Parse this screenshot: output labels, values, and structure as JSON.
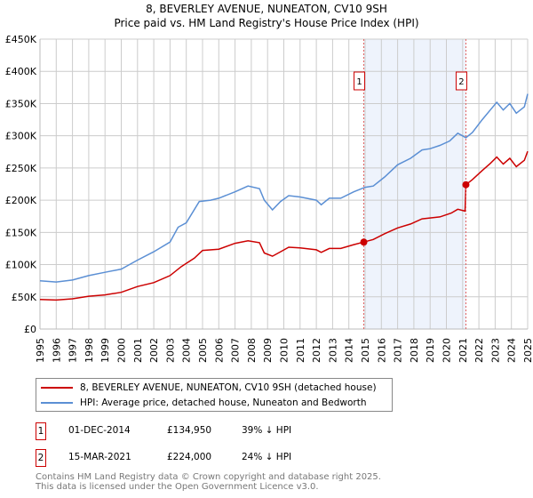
{
  "chart_data": {
    "type": "line",
    "title": "8, BEVERLEY AVENUE, NUNEATON, CV10 9SH",
    "subtitle": "Price paid vs. HM Land Registry's House Price Index (HPI)",
    "xlim": [
      1995,
      2025
    ],
    "ylim": [
      0,
      450000
    ],
    "y_ticks": [
      {
        "v": 0,
        "label": "£0"
      },
      {
        "v": 50000,
        "label": "£50K"
      },
      {
        "v": 100000,
        "label": "£100K"
      },
      {
        "v": 150000,
        "label": "£150K"
      },
      {
        "v": 200000,
        "label": "£200K"
      },
      {
        "v": 250000,
        "label": "£250K"
      },
      {
        "v": 300000,
        "label": "£300K"
      },
      {
        "v": 350000,
        "label": "£350K"
      },
      {
        "v": 400000,
        "label": "£400K"
      },
      {
        "v": 450000,
        "label": "£450K"
      }
    ],
    "x_ticks": [
      "1995",
      "1996",
      "1997",
      "1998",
      "1999",
      "2000",
      "2001",
      "2002",
      "2003",
      "2004",
      "2005",
      "2006",
      "2007",
      "2008",
      "2009",
      "2010",
      "2011",
      "2012",
      "2013",
      "2014",
      "2015",
      "2016",
      "2017",
      "2018",
      "2019",
      "2020",
      "2021",
      "2022",
      "2023",
      "2024",
      "2025"
    ],
    "grid": true,
    "shaded_range": [
      2014.92,
      2021.2
    ],
    "series": [
      {
        "name": "8, BEVERLEY AVENUE, NUNEATON, CV10 9SH (detached house)",
        "color": "#cc0000",
        "x": [
          1995,
          1996,
          1997,
          1998,
          1999,
          2000,
          2001,
          2002,
          2003,
          2003.7,
          2004.5,
          2005,
          2006,
          2007,
          2007.8,
          2008.5,
          2008.8,
          2009.3,
          2009.8,
          2010.3,
          2011,
          2012,
          2012.3,
          2012.8,
          2013.5,
          2014.3,
          2014.92,
          2015.5,
          2016.2,
          2017,
          2017.8,
          2018.5,
          2019.6,
          2020.3,
          2020.7,
          2021.15,
          2021.2,
          2021.6,
          2022.2,
          2022.7,
          2023.1,
          2023.5,
          2023.9,
          2024.3,
          2024.8,
          2025
        ],
        "y": [
          46000,
          45000,
          47000,
          51000,
          53000,
          57000,
          66000,
          72000,
          83000,
          97000,
          110000,
          122000,
          124000,
          133000,
          137000,
          134000,
          118000,
          113000,
          120000,
          127000,
          126000,
          123000,
          119000,
          125000,
          125000,
          131000,
          134950,
          139000,
          148000,
          157000,
          163000,
          171000,
          174000,
          180000,
          186000,
          183000,
          224000,
          232000,
          246000,
          257000,
          267000,
          256000,
          265000,
          252000,
          262000,
          276000
        ]
      },
      {
        "name": "HPI: Average price, detached house, Nuneaton and Bedworth",
        "color": "#5b8fd4",
        "x": [
          1995,
          1996,
          1997,
          1998,
          1999,
          2000,
          2001,
          2002,
          2003,
          2003.5,
          2004,
          2004.8,
          2005.5,
          2006,
          2007,
          2007.8,
          2008.5,
          2008.8,
          2009.3,
          2009.8,
          2010.3,
          2011,
          2012,
          2012.3,
          2012.8,
          2013.5,
          2014.3,
          2015,
          2015.5,
          2016.2,
          2017,
          2017.8,
          2018.5,
          2019,
          2019.6,
          2020.2,
          2020.7,
          2021.2,
          2021.6,
          2022.2,
          2022.7,
          2023.1,
          2023.5,
          2023.9,
          2024.3,
          2024.8,
          2025
        ],
        "y": [
          75000,
          73000,
          76000,
          83000,
          88000,
          93000,
          107000,
          120000,
          135000,
          158000,
          165000,
          198000,
          200000,
          203000,
          213000,
          222000,
          218000,
          200000,
          185000,
          198000,
          207000,
          205000,
          200000,
          193000,
          203000,
          203000,
          213000,
          220000,
          222000,
          236000,
          255000,
          265000,
          278000,
          280000,
          285000,
          292000,
          304000,
          297000,
          305000,
          325000,
          340000,
          352000,
          340000,
          350000,
          335000,
          345000,
          365000
        ]
      }
    ],
    "annotations": [
      {
        "label": "1",
        "x": 2014.92,
        "y": 134950
      },
      {
        "label": "2",
        "x": 2021.2,
        "y": 224000
      }
    ],
    "legend_position": "bottom"
  },
  "sales": [
    {
      "num": "1",
      "date": "01-DEC-2014",
      "price": "£134,950",
      "hpi": "39% ↓ HPI"
    },
    {
      "num": "2",
      "date": "15-MAR-2021",
      "price": "£224,000",
      "hpi": "24% ↓ HPI"
    }
  ],
  "footer": {
    "line1": "Contains HM Land Registry data © Crown copyright and database right 2025.",
    "line2": "This data is licensed under the Open Government Licence v3.0."
  }
}
